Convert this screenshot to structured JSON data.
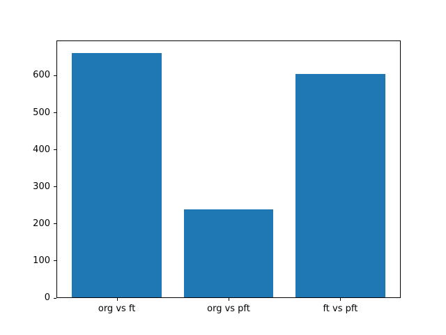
{
  "chart_data": {
    "type": "bar",
    "title": "",
    "xlabel": "",
    "ylabel": "",
    "categories": [
      "org vs ft",
      "org vs pft",
      "ft vs pft"
    ],
    "values": [
      662,
      240,
      605
    ],
    "yticks": [
      0,
      100,
      200,
      300,
      400,
      500,
      600
    ],
    "ylim": [
      0,
      695
    ],
    "xlim": [
      -0.54,
      2.54
    ],
    "bar_width": 0.8,
    "bar_color": "#1f77b4",
    "axis_color": "#000000",
    "background_color": "#ffffff",
    "grid": false,
    "legend_position": "none"
  }
}
